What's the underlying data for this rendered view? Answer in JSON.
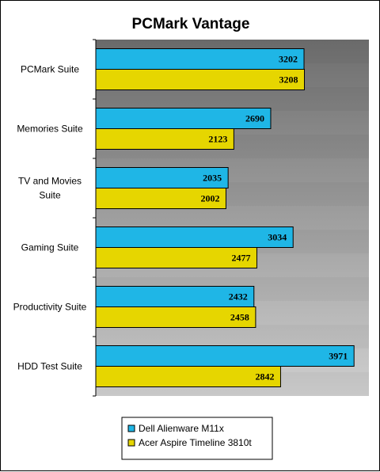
{
  "chart_data": {
    "type": "bar",
    "orientation": "horizontal",
    "title": "PCMark Vantage",
    "categories": [
      [
        "PCMark Suite"
      ],
      [
        "Memories Suite"
      ],
      [
        "TV and Movies",
        "Suite"
      ],
      [
        "Gaming Suite"
      ],
      [
        "Productivity Suite"
      ],
      [
        "HDD Test Suite"
      ]
    ],
    "series": [
      {
        "name": "Dell Alienware M11x",
        "color": "#1fb6e6",
        "values": [
          3202,
          2690,
          2035,
          3034,
          2432,
          3971
        ]
      },
      {
        "name": "Acer Aspire Timeline 3810t",
        "color": "#e6d600",
        "values": [
          3208,
          2123,
          2002,
          2477,
          2458,
          2842
        ]
      }
    ],
    "xlim": [
      0,
      4200
    ],
    "data_labels": true,
    "grid": false,
    "legend_position": "bottom"
  }
}
